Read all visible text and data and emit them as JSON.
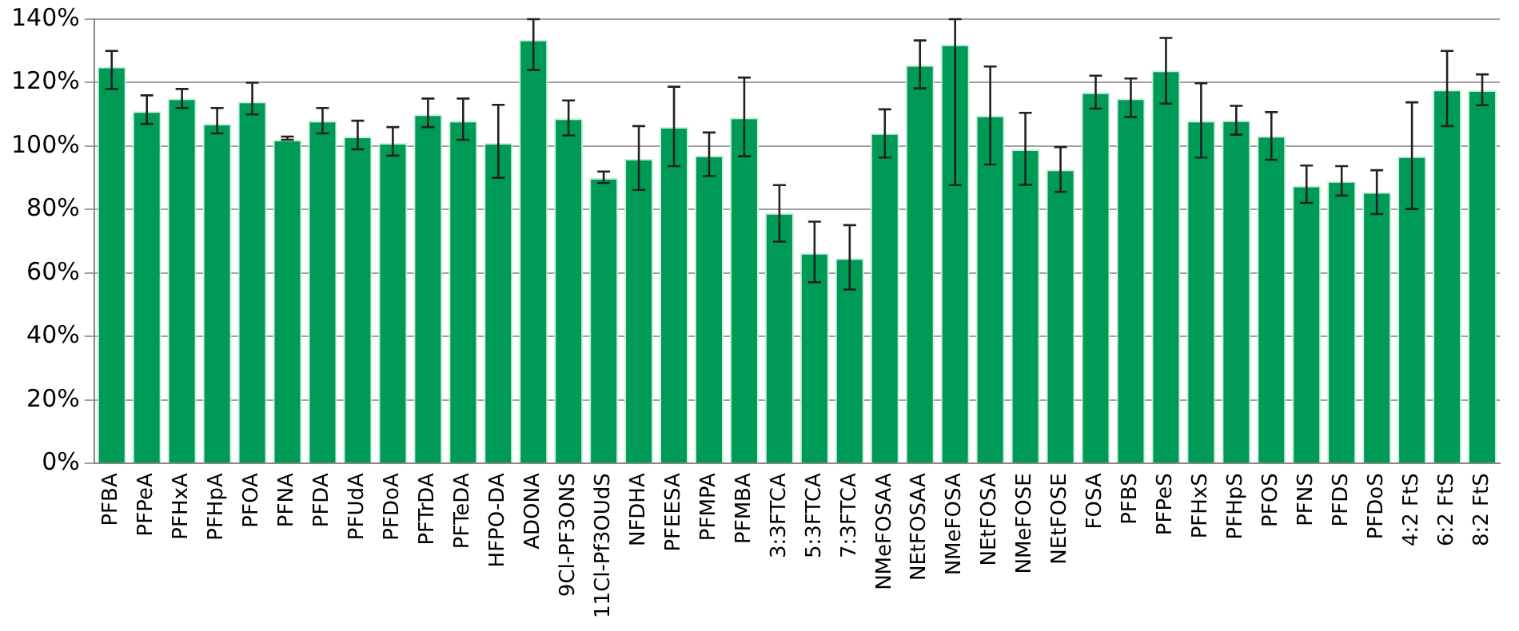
{
  "chart_data": {
    "type": "bar",
    "categories": [
      "PFBA",
      "PFPeA",
      "PFHxA",
      "PFHpA",
      "PFOA",
      "PFNA",
      "PFDA",
      "PFUdA",
      "PFDoA",
      "PFTrDA",
      "PFTeDA",
      "HFPO-DA",
      "ADONA",
      "9Cl-PF3ONS",
      "11Cl-Pf3OUdS",
      "NFDHA",
      "PFEESA",
      "PFMPA",
      "PFMBA",
      "3:3FTCA",
      "5:3FTCA",
      "7:3FTCA",
      "NMeFOSAA",
      "NEtFOSAA",
      "NMeFOSA",
      "NEtFOSA",
      "NMeFOSE",
      "NEtFOSE",
      "FOSA",
      "PFBS",
      "PFPeS",
      "PFHxS",
      "PFHpS",
      "PFOS",
      "PFNS",
      "PFDS",
      "PFDoS",
      "4:2 FtS",
      "6:2 FtS",
      "8:2 FtS"
    ],
    "values": [
      125,
      111,
      115,
      107,
      114,
      102,
      108,
      103,
      101,
      110,
      108,
      101,
      133.5,
      108.7,
      90,
      96,
      106,
      97,
      109,
      78.9,
      66.3,
      64.7,
      104.1,
      125.5,
      132,
      109.6,
      99,
      92.6,
      116.9,
      115,
      123.8,
      108,
      108.1,
      103.2,
      87.5,
      89,
      85.5,
      96.8,
      117.8,
      117.6
    ],
    "errors": [
      [
        118,
        130
      ],
      [
        107,
        116
      ],
      [
        112,
        118
      ],
      [
        104,
        112
      ],
      [
        110,
        120
      ],
      [
        102,
        103
      ],
      [
        104,
        112
      ],
      [
        99,
        108
      ],
      [
        97,
        106
      ],
      [
        106,
        115
      ],
      [
        102,
        115
      ],
      [
        90,
        113
      ],
      [
        124,
        140
      ],
      [
        103.4,
        114.4
      ],
      [
        88.4,
        92
      ],
      [
        86.2,
        106.3
      ],
      [
        93.7,
        118.7
      ],
      [
        90.6,
        104.3
      ],
      [
        96.8,
        121.6
      ],
      [
        69.9,
        87.7
      ],
      [
        57.1,
        76.2
      ],
      [
        54.8,
        75.1
      ],
      [
        96.4,
        111.6
      ],
      [
        118.2,
        133.3
      ],
      [
        87.7,
        140
      ],
      [
        94.2,
        125.1
      ],
      [
        87.8,
        110.5
      ],
      [
        85.6,
        99.7
      ],
      [
        111.8,
        122.2
      ],
      [
        109.2,
        121.3
      ],
      [
        113.4,
        134.1
      ],
      [
        96.4,
        119.8
      ],
      [
        103.6,
        112.7
      ],
      [
        95.7,
        110.7
      ],
      [
        82.1,
        93.9
      ],
      [
        84.4,
        93.7
      ],
      [
        78.6,
        92.4
      ],
      [
        80.2,
        113.8
      ],
      [
        106.3,
        130
      ],
      [
        112.9,
        122.6
      ]
    ],
    "color": "#009a57",
    "ylim": [
      0,
      140
    ],
    "yticks": [
      {
        "value": 0,
        "label": "0%"
      },
      {
        "value": 20,
        "label": "20%"
      },
      {
        "value": 40,
        "label": "40%"
      },
      {
        "value": 60,
        "label": "60%"
      },
      {
        "value": 80,
        "label": "80%"
      },
      {
        "value": 100,
        "label": "100%"
      },
      {
        "value": 120,
        "label": "120%"
      },
      {
        "value": 140,
        "label": "140%"
      }
    ],
    "grid": "y",
    "legend": false
  }
}
